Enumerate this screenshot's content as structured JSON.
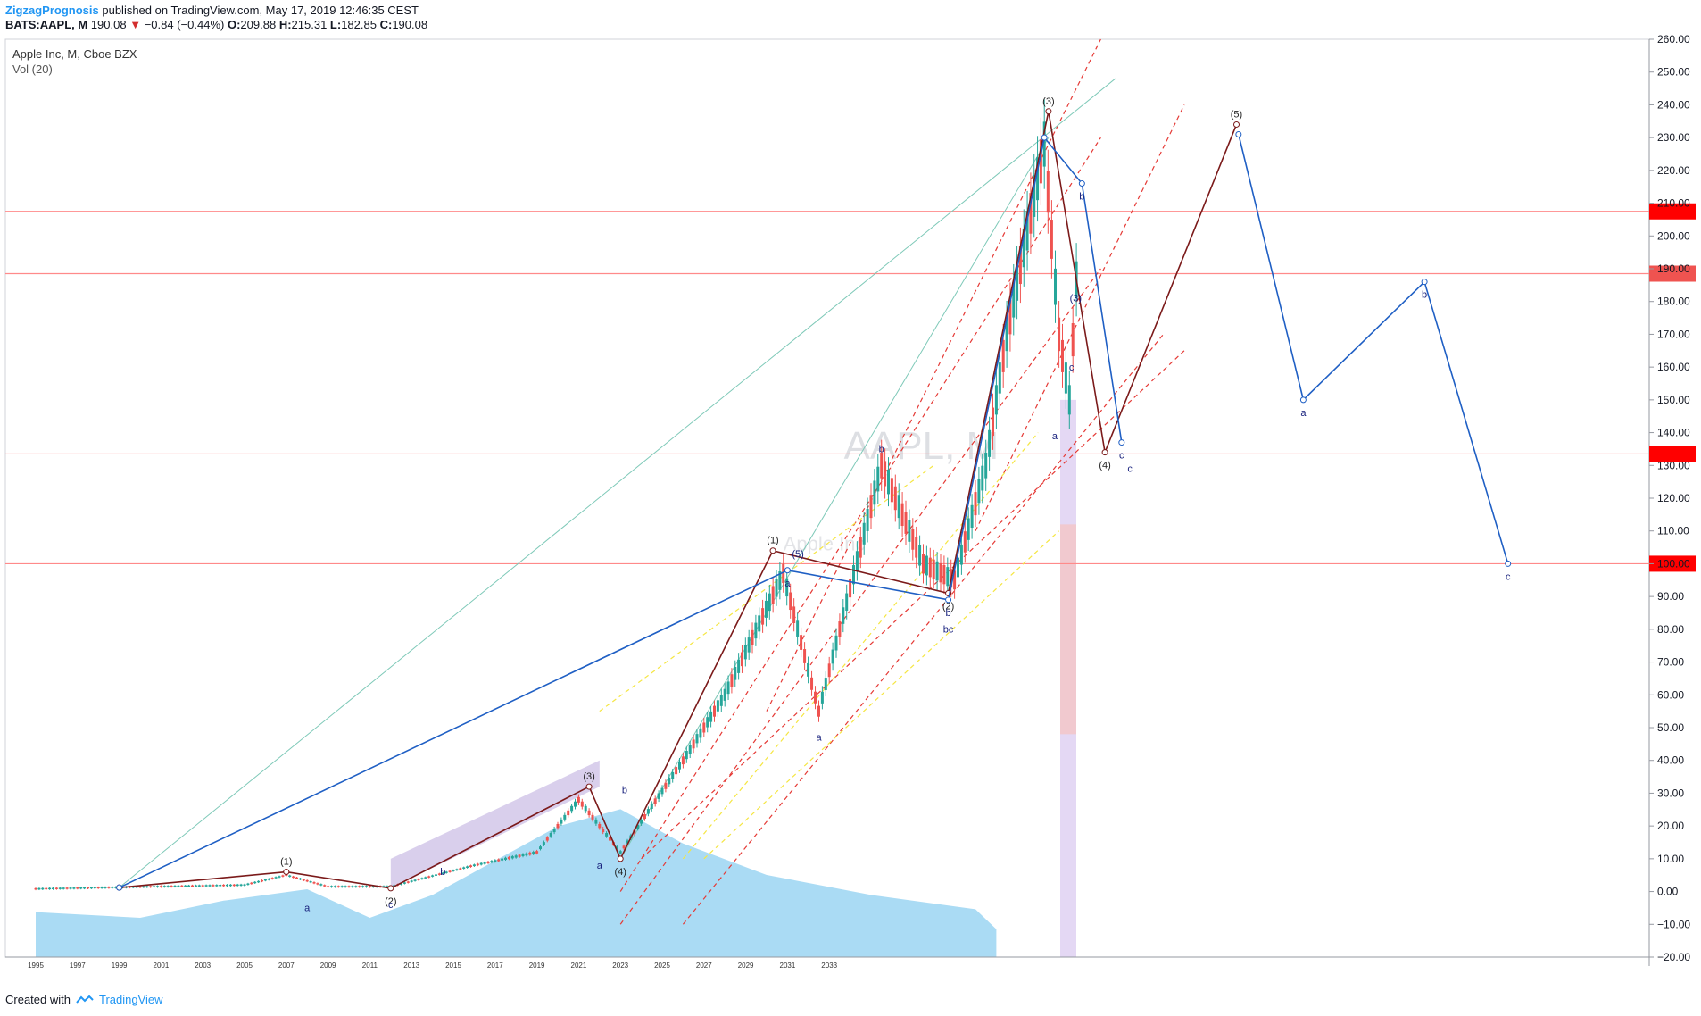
{
  "header": {
    "author": "ZigzagPrognosis",
    "published": "published on TradingView.com, May 17, 2019 12:46:35 CEST",
    "symbol": "BATS:AAPL, M",
    "last": "190.08",
    "change": "−0.84 (−0.44%)",
    "open_label": "O:",
    "open": "209.88",
    "high_label": "H:",
    "high": "215.31",
    "low_label": "L:",
    "low": "182.85",
    "close_label": "C:",
    "close": "190.08"
  },
  "legend": {
    "instrument": "Apple Inc, M, Cboe BZX",
    "volume": "Vol (20)"
  },
  "watermark": {
    "symbol": "AAPL, M",
    "name": "Apple Inc"
  },
  "footer": {
    "created_with": "Created with",
    "brand": "TradingView"
  },
  "colors": {
    "zigzag_dark": "#7b1a1a",
    "zigzag_blue": "#1f5fc4",
    "channel_red": "#e53935",
    "channel_yellow": "#f5e642",
    "horizontal": "#ff8a8a",
    "volume": "#8ecff0",
    "candle_up": "#26a69a",
    "candle_down": "#ef5350"
  },
  "chart_data": {
    "type": "line",
    "title": "",
    "ylim": [
      -20,
      260
    ],
    "y_ticks": [
      "260.00",
      "250.00",
      "240.00",
      "230.00",
      "220.00",
      "210.00",
      "200.00",
      "190.00",
      "180.00",
      "170.00",
      "160.00",
      "150.00",
      "140.00",
      "130.00",
      "120.00",
      "110.00",
      "100.00",
      "90.00",
      "80.00",
      "70.00",
      "60.00",
      "50.00",
      "40.00",
      "30.00",
      "20.00",
      "10.00",
      "0.00",
      "−10.00",
      "−20.00"
    ],
    "x_ticks": [
      "1995",
      "1997",
      "1999",
      "2001",
      "2003",
      "2005",
      "2007",
      "2009",
      "2011",
      "2013",
      "2015",
      "2017",
      "2019",
      "2021",
      "2023",
      "2025",
      "2027",
      "2029",
      "2031",
      "2033"
    ],
    "horizontal_levels": [
      {
        "y": 207.5,
        "label": "207.5"
      },
      {
        "y": 188.5,
        "label": "188.5"
      },
      {
        "y": 133.5,
        "label": "133.5"
      },
      {
        "y": 100.0,
        "label": "100.0"
      }
    ],
    "series": [
      {
        "points": [
          {
            "x": 1999,
            "y": 1.2,
            "label": ""
          },
          {
            "x": 2007,
            "y": 6,
            "label": "(1)"
          },
          {
            "x": 2012,
            "y": 1,
            "label": "(2)"
          },
          {
            "x": 2021.5,
            "y": 32,
            "label": "(3)"
          },
          {
            "x": 2023,
            "y": 10,
            "label": "(4)"
          },
          {
            "x": 2030.3,
            "y": 104,
            "label": "(1)"
          },
          {
            "x": 2038.7,
            "y": 91,
            "label": "(2)"
          },
          {
            "x": 2043.5,
            "y": 238,
            "label": "(3)"
          },
          {
            "x": 2046.2,
            "y": 134,
            "label": "(4)"
          },
          {
            "x": 2052.5,
            "y": 234,
            "label": "(5)"
          }
        ]
      },
      {
        "points": [
          {
            "x": 1999,
            "y": 1.2,
            "label": ""
          },
          {
            "x": 2031,
            "y": 98,
            "label": "a"
          },
          {
            "x": 2038.7,
            "y": 89,
            "label": "b"
          },
          {
            "x": 2043.3,
            "y": 230,
            "label": ""
          },
          {
            "x": 2045.1,
            "y": 216,
            "label": "b"
          },
          {
            "x": 2047,
            "y": 137,
            "label": "c"
          }
        ]
      },
      {
        "points": [
          {
            "x": 2052.6,
            "y": 231,
            "label": ""
          },
          {
            "x": 2055.7,
            "y": 150,
            "label": "a"
          },
          {
            "x": 2061.5,
            "y": 186,
            "label": "b"
          },
          {
            "x": 2065.5,
            "y": 100,
            "label": "c"
          }
        ]
      }
    ],
    "wave_labels": [
      {
        "x": 2008,
        "y": -6,
        "text": "a"
      },
      {
        "x": 2014.5,
        "y": 5,
        "text": "b"
      },
      {
        "x": 2012,
        "y": -5,
        "text": "c"
      },
      {
        "x": 2022,
        "y": 7,
        "text": "a"
      },
      {
        "x": 2023.2,
        "y": 30,
        "text": "b"
      },
      {
        "x": 2031.5,
        "y": 102,
        "text": "(5)"
      },
      {
        "x": 2032.5,
        "y": 46,
        "text": "a"
      },
      {
        "x": 2035.5,
        "y": 134,
        "text": "b"
      },
      {
        "x": 2038.7,
        "y": 79,
        "text": "bc"
      },
      {
        "x": 2043.8,
        "y": 138,
        "text": "a"
      },
      {
        "x": 2047.4,
        "y": 128,
        "text": "c"
      },
      {
        "x": 2044.8,
        "y": 180,
        "text": "(3)"
      },
      {
        "x": 2044.6,
        "y": 159,
        "text": "c"
      }
    ]
  }
}
